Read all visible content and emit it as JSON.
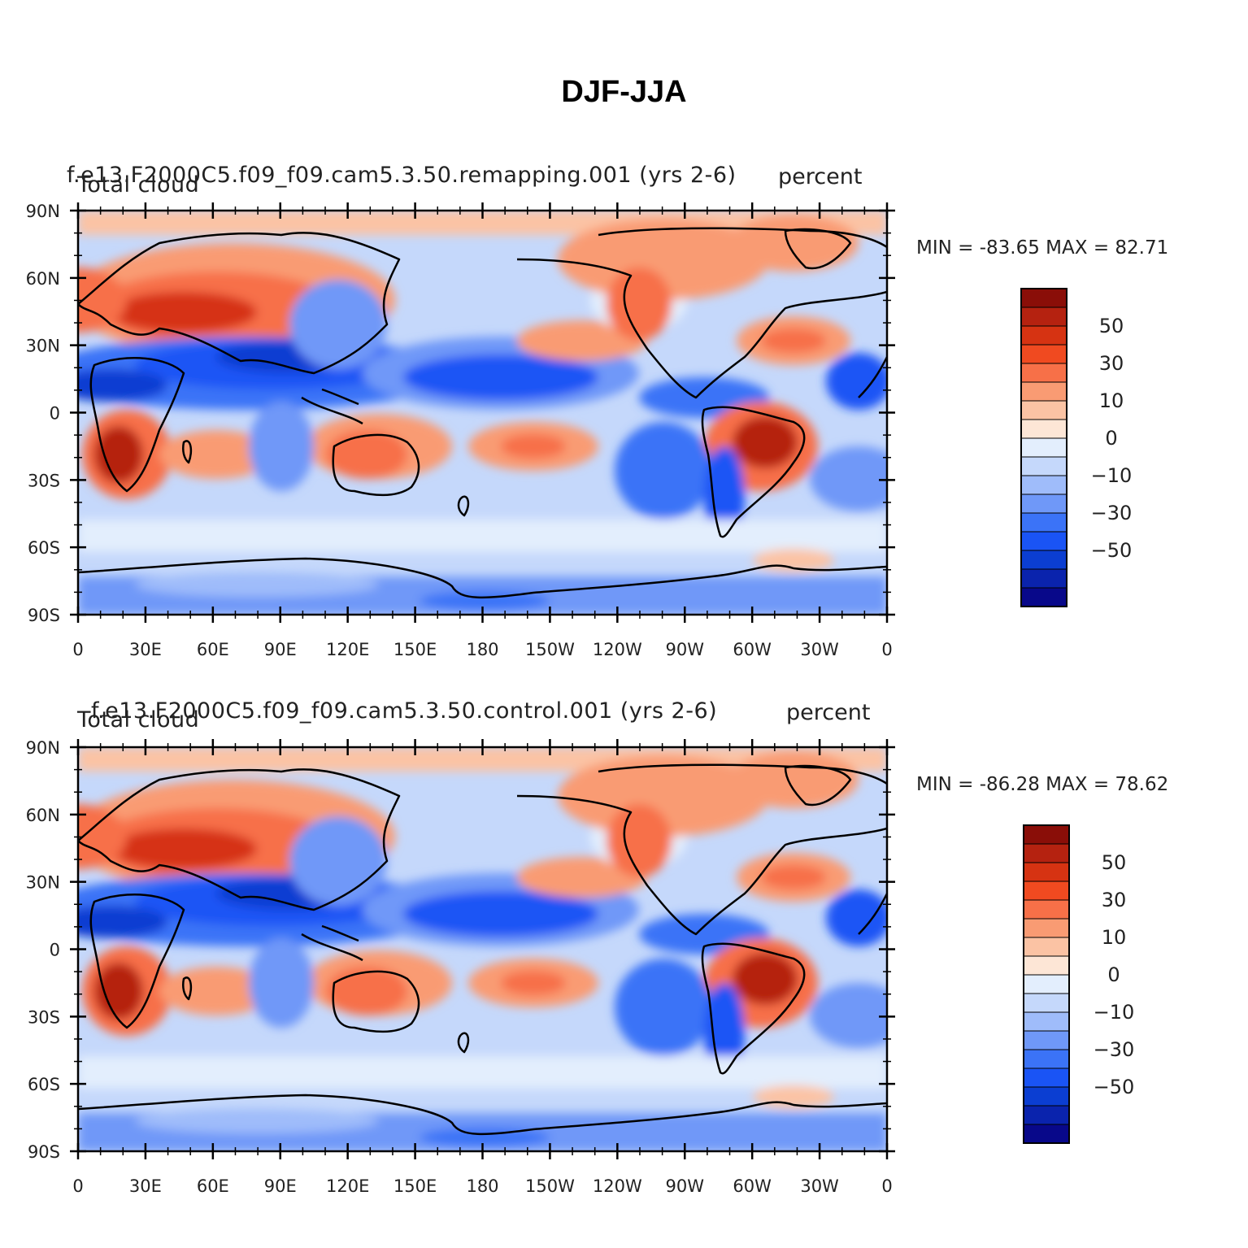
{
  "figure": {
    "title": "DJF-JJA"
  },
  "colors": {
    "palette": [
      "#08088a",
      "#0a23ad",
      "#0b3ed2",
      "#1a54f5",
      "#3b73f7",
      "#6f98f8",
      "#9fbcfa",
      "#c5d8fb",
      "#e3eefd",
      "#fde6d6",
      "#fbc3a4",
      "#f99b73",
      "#f77048",
      "#f04a20",
      "#d63312",
      "#b52210",
      "#8a0e08"
    ],
    "land_outline": "#000000",
    "background": "#ffffff"
  },
  "chart_data": [
    {
      "type": "heatmap",
      "panel": "top",
      "left_string": "Total cloud",
      "center_string": "f.e13.F2000C5.f09_f09.cam5.3.50.remapping.001  (yrs 2-6)",
      "right_string": "percent",
      "min_label": "MIN = -83.65  MAX =   82.71",
      "min": -83.65,
      "max": 82.71,
      "y_ticks": [
        "90N",
        "60N",
        "30N",
        "0",
        "30S",
        "60S",
        "90S"
      ],
      "x_ticks": [
        "0",
        "30E",
        "60E",
        "90E",
        "120E",
        "150E",
        "180",
        "150W",
        "120W",
        "90W",
        "60W",
        "30W",
        "0"
      ],
      "colorbar_labels": [
        "50",
        "30",
        "10",
        "0",
        "-10",
        "-30",
        "-50"
      ],
      "colorbar_levels": [
        -70,
        -60,
        -50,
        -40,
        -30,
        -20,
        -10,
        -5,
        0,
        5,
        10,
        20,
        30,
        40,
        50,
        60,
        70
      ],
      "xlim": [
        0,
        360
      ],
      "ylim": [
        -90,
        90
      ]
    },
    {
      "type": "heatmap",
      "panel": "bottom",
      "left_string": "Total cloud",
      "center_string": "f.e13.F2000C5.f09_f09.cam5.3.50.control.001  (yrs 2-6)",
      "right_string": "percent",
      "min_label": "MIN = -86.28  MAX =   78.62",
      "min": -86.28,
      "max": 78.62,
      "y_ticks": [
        "90N",
        "60N",
        "30N",
        "0",
        "30S",
        "60S",
        "90S"
      ],
      "x_ticks": [
        "0",
        "30E",
        "60E",
        "90E",
        "120E",
        "150E",
        "180",
        "150W",
        "120W",
        "90W",
        "60W",
        "30W",
        "0"
      ],
      "colorbar_labels": [
        "50",
        "30",
        "10",
        "0",
        "-10",
        "-30",
        "-50"
      ],
      "colorbar_levels": [
        -70,
        -60,
        -50,
        -40,
        -30,
        -20,
        -10,
        -5,
        0,
        5,
        10,
        20,
        30,
        40,
        50,
        60,
        70
      ],
      "xlim": [
        0,
        360
      ],
      "ylim": [
        -90,
        90
      ]
    }
  ]
}
